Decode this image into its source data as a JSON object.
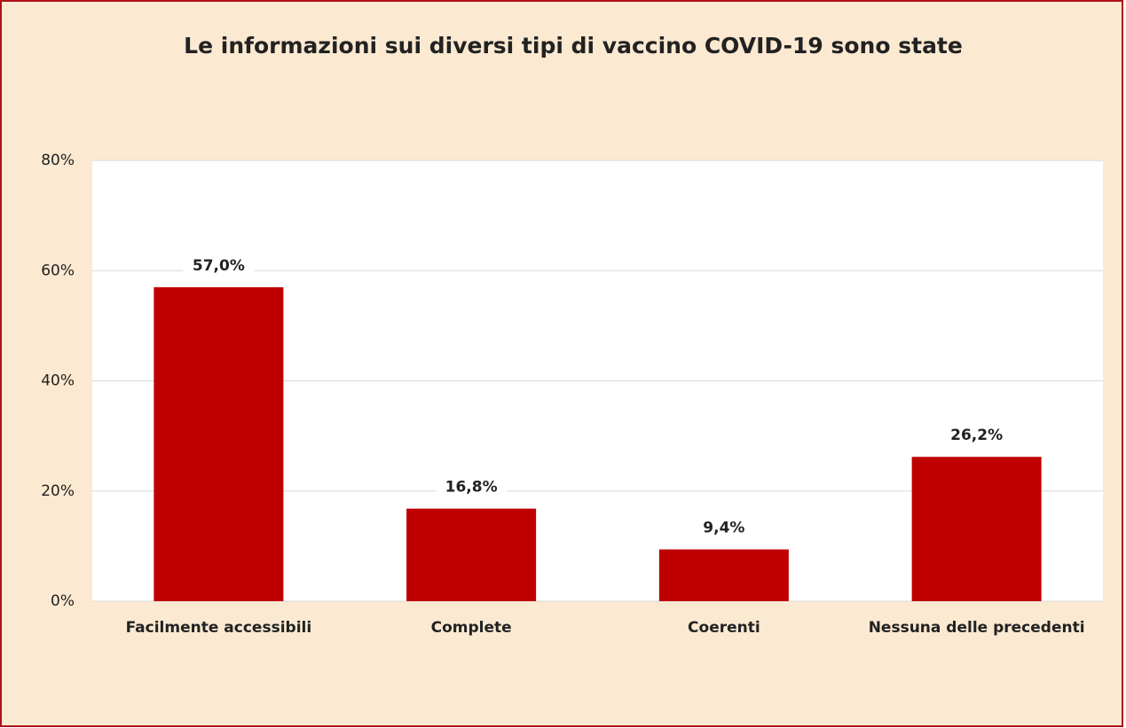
{
  "chart_data": {
    "type": "bar",
    "title": "Le informazioni sui diversi tipi di vaccino COVID-19 sono state",
    "categories": [
      "Facilmente accessibili",
      "Complete",
      "Coerenti",
      "Nessuna delle precedenti"
    ],
    "values": [
      57.0,
      16.8,
      9.4,
      26.2
    ],
    "value_labels": [
      "57,0%",
      "16,8%",
      "9,4%",
      "26,2%"
    ],
    "color": "#c00000",
    "ylim": [
      0,
      80
    ],
    "yticks": [
      {
        "value": 0,
        "label": "0%"
      },
      {
        "value": 20,
        "label": "20%"
      },
      {
        "value": 40,
        "label": "40%"
      },
      {
        "value": 60,
        "label": "60%"
      },
      {
        "value": 80,
        "label": "80%"
      }
    ],
    "grid": true
  }
}
